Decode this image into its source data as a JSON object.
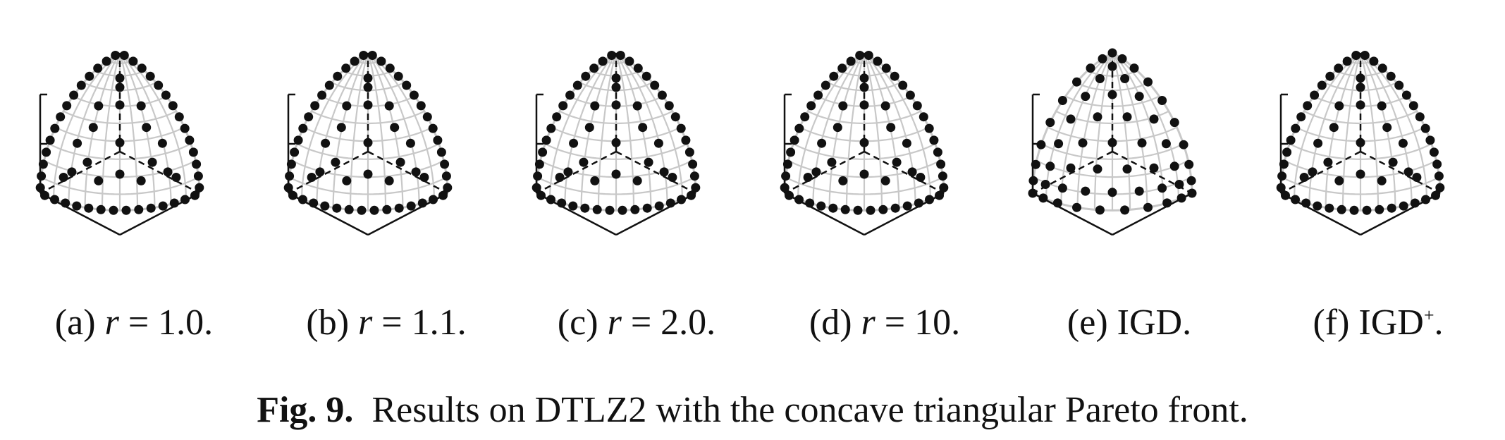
{
  "figure": {
    "label": "Fig. 9.",
    "text": "Results on DTLZ2 with the concave triangular Pareto front."
  },
  "panels": [
    {
      "id": "a",
      "prefix": "(a) ",
      "var": "r",
      "mid": " = 1.0.",
      "main": "",
      "sup": "",
      "suffix": "",
      "pattern": "edge"
    },
    {
      "id": "b",
      "prefix": "(b) ",
      "var": "r",
      "mid": " = 1.1.",
      "main": "",
      "sup": "",
      "suffix": "",
      "pattern": "edge"
    },
    {
      "id": "c",
      "prefix": "(c) ",
      "var": "r",
      "mid": " = 2.0.",
      "main": "",
      "sup": "",
      "suffix": "",
      "pattern": "edge"
    },
    {
      "id": "d",
      "prefix": "(d) ",
      "var": "r",
      "mid": " = 10.",
      "main": "",
      "sup": "",
      "suffix": "",
      "pattern": "edge"
    },
    {
      "id": "e",
      "prefix": "(e) ",
      "var": "",
      "mid": "",
      "main": "IGD",
      "sup": "",
      "suffix": ".",
      "pattern": "uniform"
    },
    {
      "id": "f",
      "prefix": "(f) ",
      "var": "",
      "mid": "",
      "main": "IGD",
      "sup": "+",
      "suffix": ".",
      "pattern": "edge"
    }
  ],
  "colors": {
    "surface_grid": "#c8c8c8",
    "axes": "#111111",
    "points": "#111111"
  }
}
